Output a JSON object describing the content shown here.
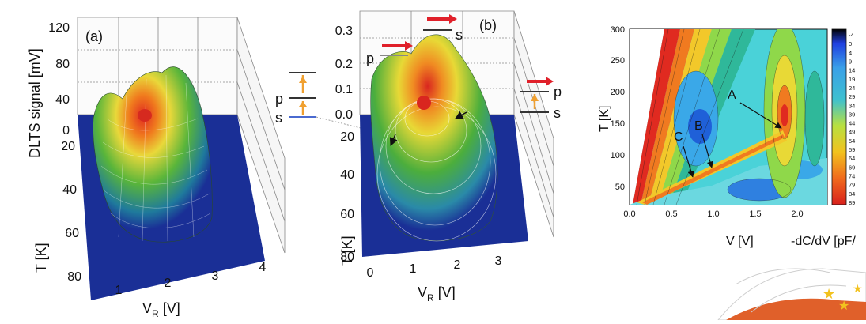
{
  "chart_data": [
    {
      "type": "surface",
      "panel_label": "(a)",
      "zlabel": "DLTS signal [mV]",
      "ylabel": "T [K]",
      "xlabel_main": "V",
      "xlabel_sub": "R",
      "xlabel_unit": " [V]",
      "z_ticks": [
        "0",
        "40",
        "80",
        "120"
      ],
      "zlim": [
        0,
        120
      ],
      "t_ticks": [
        "20",
        "40",
        "60",
        "80"
      ],
      "ylim": [
        20,
        80
      ],
      "v_ticks": [
        "1",
        "2",
        "3",
        "4"
      ],
      "xlim": [
        0.6,
        4
      ],
      "peaks": [
        {
          "v": 1.9,
          "t": 34,
          "value": 75
        },
        {
          "v": 2.3,
          "t": 28,
          "value": 70
        }
      ]
    },
    {
      "type": "surface",
      "panel_label": "(b)",
      "ylabel": "T [K]",
      "xlabel_main": "V",
      "xlabel_sub": "R",
      "xlabel_unit": " [V]",
      "z_ticks": [
        "0.0",
        "0.1",
        "0.2",
        "0.3"
      ],
      "zlim": [
        0,
        0.35
      ],
      "t_ticks": [
        "20",
        "40",
        "60",
        "80"
      ],
      "ylim": [
        20,
        80
      ],
      "v_ticks": [
        "0",
        "1",
        "2",
        "3"
      ],
      "xlim": [
        0,
        3.8
      ],
      "peaks": [
        {
          "v": 1.5,
          "t": 22,
          "value": 0.27
        },
        {
          "v": 2.0,
          "t": 30,
          "value": 0.22
        }
      ]
    },
    {
      "type": "heatmap",
      "xlabel": "V [V]",
      "ylabel": "T [K]",
      "x_ticks": [
        "0.0",
        "0.5",
        "1.0",
        "1.5",
        "2.0"
      ],
      "xlim": [
        0,
        2.35
      ],
      "y_ticks": [
        "50",
        "100",
        "150",
        "200",
        "250",
        "300"
      ],
      "ylim": [
        20,
        300
      ],
      "colorbar_label": "-dC/dV [pF/",
      "colorbar_ticks": [
        "-4",
        "0",
        "4",
        "9",
        "14",
        "19",
        "24",
        "29",
        "34",
        "39",
        "44",
        "49",
        "54",
        "59",
        "64",
        "69",
        "74",
        "79",
        "84",
        "89"
      ],
      "annotations": [
        {
          "label": "A",
          "v": 1.72,
          "t": 140
        },
        {
          "label": "B",
          "v": 0.95,
          "t": 85
        },
        {
          "label": "C",
          "v": 0.72,
          "t": 65
        }
      ]
    }
  ],
  "level_diagrams": [
    {
      "p_label": "p",
      "s_label": "s"
    },
    {
      "p_label": "p",
      "s_label": "s"
    },
    {
      "p_label": "p",
      "s_label": "s"
    }
  ],
  "colors": {
    "surface_base": "#1a2f96",
    "peak": "#d62a1f",
    "arrow_red": "#e0202a",
    "arrow_orange": "#f0a030",
    "grid": "#777777"
  }
}
